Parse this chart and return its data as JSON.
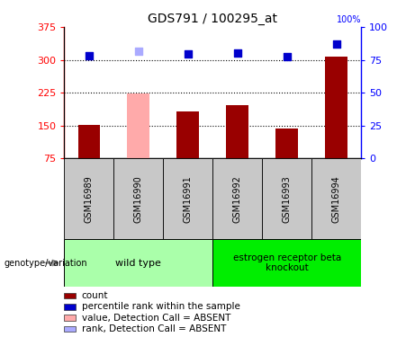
{
  "title": "GDS791 / 100295_at",
  "samples": [
    "GSM16989",
    "GSM16990",
    "GSM16991",
    "GSM16992",
    "GSM16993",
    "GSM16994"
  ],
  "bar_values": [
    152,
    224,
    182,
    196,
    144,
    307
  ],
  "bar_colors": [
    "#990000",
    "#ffaaaa",
    "#990000",
    "#990000",
    "#990000",
    "#990000"
  ],
  "dot_values": [
    310,
    320,
    314,
    316,
    308,
    335
  ],
  "dot_colors": [
    "#0000cc",
    "#aaaaff",
    "#0000cc",
    "#0000cc",
    "#0000cc",
    "#0000cc"
  ],
  "ylim_left": [
    75,
    375
  ],
  "ylim_right": [
    0,
    100
  ],
  "yticks_left": [
    75,
    150,
    225,
    300,
    375
  ],
  "yticks_right": [
    0,
    25,
    50,
    75,
    100
  ],
  "hlines": [
    150,
    225,
    300
  ],
  "group1_label": "wild type",
  "group2_label": "estrogen receptor beta\nknockout",
  "group1_color": "#aaffaa",
  "group2_color": "#00ee00",
  "genotype_label": "genotype/variation",
  "legend_items": [
    {
      "label": "count",
      "color": "#990000"
    },
    {
      "label": "percentile rank within the sample",
      "color": "#0000cc"
    },
    {
      "label": "value, Detection Call = ABSENT",
      "color": "#ffaaaa"
    },
    {
      "label": "rank, Detection Call = ABSENT",
      "color": "#aaaaff"
    }
  ],
  "bar_width": 0.45,
  "dot_size": 40,
  "fig_width": 4.61,
  "fig_height": 3.75,
  "fig_dpi": 100
}
